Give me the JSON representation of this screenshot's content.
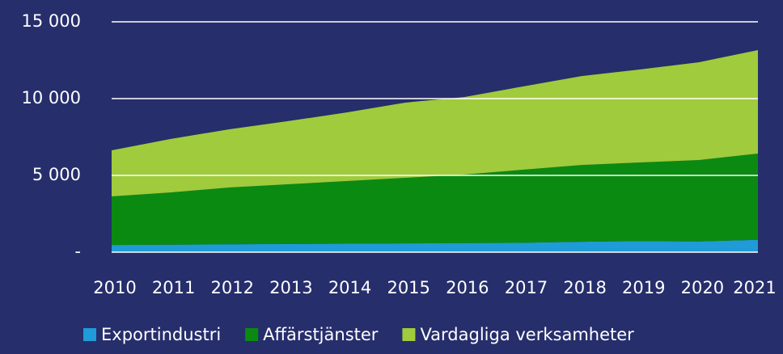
{
  "chart_data": {
    "type": "area",
    "stacked": true,
    "categories": [
      "2010",
      "2011",
      "2012",
      "2013",
      "2014",
      "2015",
      "2016",
      "2017",
      "2018",
      "2019",
      "2020",
      "2021"
    ],
    "series": [
      {
        "name": "Exportindustri",
        "color": "#1f9bd7",
        "values": [
          470,
          490,
          510,
          530,
          550,
          570,
          590,
          610,
          680,
          720,
          700,
          800
        ]
      },
      {
        "name": "Affärstjänster",
        "color": "#0b8a12",
        "values": [
          3160,
          3400,
          3700,
          3890,
          4080,
          4270,
          4460,
          4760,
          5000,
          5120,
          5300,
          5620
        ]
      },
      {
        "name": "Vardagliga verksamheter",
        "color": "#a0cb3c",
        "values": [
          3000,
          3480,
          3790,
          4110,
          4470,
          4900,
          5050,
          5420,
          5790,
          6060,
          6370,
          6740
        ]
      }
    ],
    "ylim": [
      0,
      15000
    ],
    "yticks": [
      {
        "value": 0,
        "label": "-"
      },
      {
        "value": 5000,
        "label": "5 000"
      },
      {
        "value": 10000,
        "label": "10 000"
      },
      {
        "value": 15000,
        "label": "15 000"
      }
    ],
    "grid": true,
    "legend": "bottom"
  }
}
